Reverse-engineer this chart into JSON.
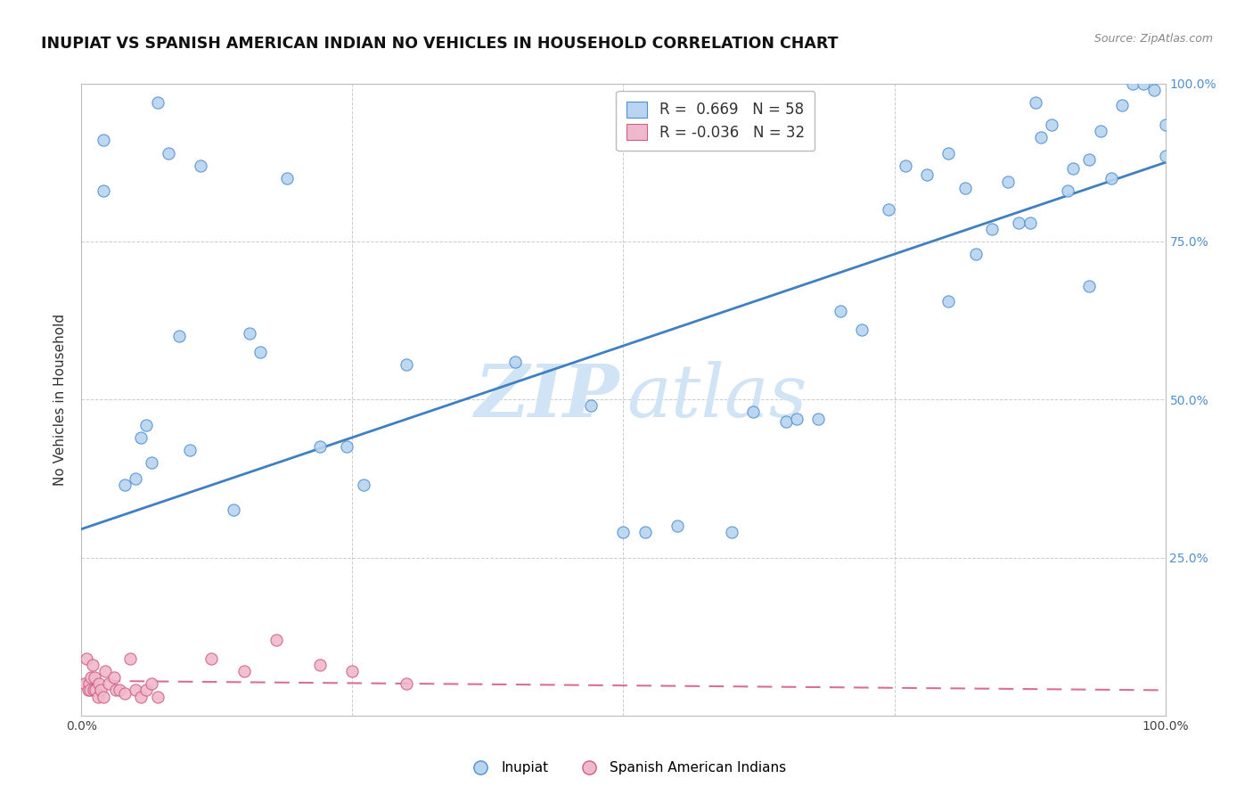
{
  "title": "INUPIAT VS SPANISH AMERICAN INDIAN NO VEHICLES IN HOUSEHOLD CORRELATION CHART",
  "source": "Source: ZipAtlas.com",
  "ylabel": "No Vehicles in Household",
  "xlim": [
    0,
    1.0
  ],
  "ylim": [
    0,
    1.0
  ],
  "r_inupiat": "0.669",
  "n_inupiat": "58",
  "r_spanish": "-0.036",
  "n_spanish": "32",
  "color_inupiat_fill": "#b8d4f0",
  "color_inupiat_edge": "#5090d0",
  "color_spanish_fill": "#f0b8cc",
  "color_spanish_edge": "#d06080",
  "color_line_inupiat": "#4080c0",
  "color_line_spanish": "#d87090",
  "color_grid": "#cccccc",
  "color_ytick": "#5090d0",
  "inupiat_x": [
    0.02,
    0.02,
    0.04,
    0.05,
    0.055,
    0.06,
    0.065,
    0.07,
    0.08,
    0.09,
    0.1,
    0.11,
    0.14,
    0.155,
    0.165,
    0.19,
    0.22,
    0.245,
    0.26,
    0.3,
    0.4,
    0.47,
    0.5,
    0.52,
    0.55,
    0.6,
    0.62,
    0.65,
    0.7,
    0.72,
    0.745,
    0.76,
    0.78,
    0.8,
    0.815,
    0.825,
    0.84,
    0.855,
    0.865,
    0.875,
    0.88,
    0.885,
    0.895,
    0.91,
    0.915,
    0.93,
    0.94,
    0.95,
    0.96,
    0.97,
    0.98,
    0.99,
    1.0,
    1.0,
    0.66,
    0.68,
    0.8,
    0.93
  ],
  "inupiat_y": [
    0.91,
    0.83,
    0.365,
    0.375,
    0.44,
    0.46,
    0.4,
    0.97,
    0.89,
    0.6,
    0.42,
    0.87,
    0.325,
    0.605,
    0.575,
    0.85,
    0.425,
    0.425,
    0.365,
    0.555,
    0.56,
    0.49,
    0.29,
    0.29,
    0.3,
    0.29,
    0.48,
    0.465,
    0.64,
    0.61,
    0.8,
    0.87,
    0.855,
    0.89,
    0.835,
    0.73,
    0.77,
    0.845,
    0.78,
    0.78,
    0.97,
    0.915,
    0.935,
    0.83,
    0.865,
    0.88,
    0.925,
    0.85,
    0.965,
    1.0,
    1.0,
    0.99,
    0.935,
    0.885,
    0.47,
    0.47,
    0.655,
    0.68
  ],
  "spanish_x": [
    0.003,
    0.005,
    0.006,
    0.007,
    0.008,
    0.009,
    0.01,
    0.011,
    0.012,
    0.013,
    0.015,
    0.016,
    0.018,
    0.02,
    0.022,
    0.025,
    0.03,
    0.032,
    0.035,
    0.04,
    0.045,
    0.05,
    0.055,
    0.06,
    0.065,
    0.07,
    0.12,
    0.15,
    0.18,
    0.22,
    0.25,
    0.3
  ],
  "spanish_y": [
    0.05,
    0.09,
    0.04,
    0.05,
    0.04,
    0.06,
    0.08,
    0.04,
    0.06,
    0.04,
    0.03,
    0.05,
    0.04,
    0.03,
    0.07,
    0.05,
    0.06,
    0.04,
    0.04,
    0.035,
    0.09,
    0.04,
    0.03,
    0.04,
    0.05,
    0.03,
    0.09,
    0.07,
    0.12,
    0.08,
    0.07,
    0.05
  ],
  "line_inupiat_x0": 0.0,
  "line_inupiat_y0": 0.295,
  "line_inupiat_x1": 1.0,
  "line_inupiat_y1": 0.875,
  "line_spanish_x0": 0.0,
  "line_spanish_y0": 0.055,
  "line_spanish_x1": 1.0,
  "line_spanish_y1": 0.04
}
